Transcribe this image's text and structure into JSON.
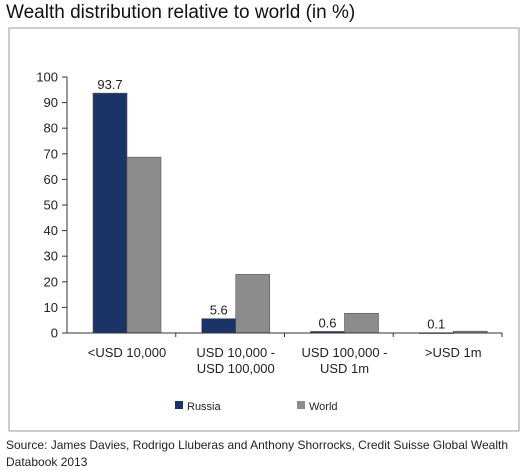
{
  "title": "Wealth distribution relative to world (in %)",
  "source": "Source: James Davies, Rodrigo Lluberas and Anthony Shorrocks, Credit Suisse Global Wealth Databook 2013",
  "chart_data": {
    "type": "bar",
    "title": "Wealth distribution relative to world (in %)",
    "categories": [
      [
        "<USD 10,000"
      ],
      [
        "USD 10,000 -",
        "USD 100,000"
      ],
      [
        "USD 100,000 -",
        "USD 1m"
      ],
      [
        ">USD 1m"
      ]
    ],
    "series": [
      {
        "name": "Russia",
        "color": "#1b3468",
        "values": [
          93.7,
          5.6,
          0.6,
          0.1
        ],
        "labels": [
          "93.7",
          "5.6",
          "0.6",
          "0.1"
        ]
      },
      {
        "name": "World",
        "color": "#8c8c8c",
        "values": [
          68.7,
          22.9,
          7.7,
          0.7
        ]
      }
    ],
    "yticks": [
      "0",
      "10",
      "20",
      "30",
      "40",
      "50",
      "60",
      "70",
      "80",
      "90",
      "100"
    ],
    "ylim": [
      0,
      100
    ],
    "grid": false,
    "legend": "bottom"
  }
}
